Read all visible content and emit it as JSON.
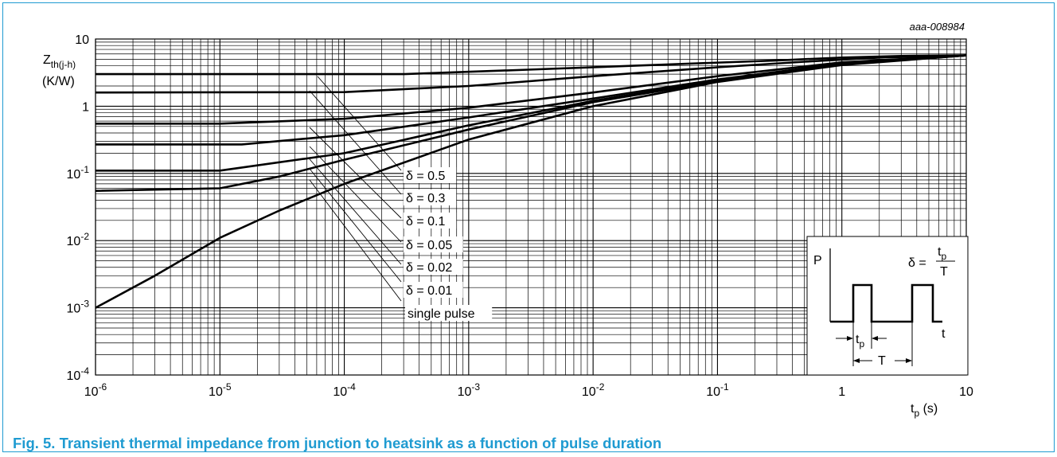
{
  "figure": {
    "code": "aaa-008984",
    "caption": "Fig. 5. Transient thermal impedance from junction to heatsink as a function of pulse duration",
    "border_color": "#1f9bd1",
    "caption_color": "#1f9bd1"
  },
  "chart_data": {
    "type": "line",
    "x_scale": "log",
    "y_scale": "log",
    "xlim": [
      1e-06,
      10
    ],
    "ylim": [
      0.0001,
      10
    ],
    "grid": true,
    "ylabel": {
      "main": "Z",
      "sub": "th(j-h)",
      "unit": "(K/W)"
    },
    "xlabel": {
      "main": "t",
      "sub": "p",
      "unit": " (s)"
    },
    "x_ticks": [
      {
        "value": 1e-06,
        "base": "10",
        "exp": "-6"
      },
      {
        "value": 1e-05,
        "base": "10",
        "exp": "-5"
      },
      {
        "value": 0.0001,
        "base": "10",
        "exp": "-4"
      },
      {
        "value": 0.001,
        "base": "10",
        "exp": "-3"
      },
      {
        "value": 0.01,
        "base": "10",
        "exp": "-2"
      },
      {
        "value": 0.1,
        "base": "10",
        "exp": "-1"
      },
      {
        "value": 1,
        "base": "1",
        "exp": ""
      },
      {
        "value": 10,
        "base": "10",
        "exp": ""
      }
    ],
    "y_ticks": [
      {
        "value": 0.0001,
        "base": "10",
        "exp": "-4"
      },
      {
        "value": 0.001,
        "base": "10",
        "exp": "-3"
      },
      {
        "value": 0.01,
        "base": "10",
        "exp": "-2"
      },
      {
        "value": 0.1,
        "base": "10",
        "exp": "-1"
      },
      {
        "value": 1,
        "base": "1",
        "exp": ""
      },
      {
        "value": 10,
        "base": "10",
        "exp": ""
      }
    ],
    "series": [
      {
        "name": "δ = 0.5",
        "points": [
          [
            1e-06,
            3.0
          ],
          [
            0.0003,
            3.0
          ],
          [
            0.003,
            3.5
          ],
          [
            0.03,
            4.1
          ],
          [
            0.3,
            4.8
          ],
          [
            1,
            5.3
          ],
          [
            3,
            5.6
          ],
          [
            10,
            5.7
          ]
        ]
      },
      {
        "name": "δ = 0.3",
        "points": [
          [
            1e-06,
            1.6
          ],
          [
            0.0001,
            1.62
          ],
          [
            0.001,
            2.0
          ],
          [
            0.01,
            2.8
          ],
          [
            0.1,
            3.8
          ],
          [
            0.5,
            4.6
          ],
          [
            2,
            5.3
          ],
          [
            10,
            5.7
          ]
        ]
      },
      {
        "name": "δ = 0.1",
        "points": [
          [
            1e-06,
            0.55
          ],
          [
            1e-05,
            0.55
          ],
          [
            0.0001,
            0.65
          ],
          [
            0.001,
            0.95
          ],
          [
            0.01,
            1.6
          ],
          [
            0.1,
            2.8
          ],
          [
            1,
            4.5
          ],
          [
            10,
            5.7
          ]
        ]
      },
      {
        "name": "δ = 0.05",
        "points": [
          [
            1e-06,
            0.27
          ],
          [
            1.5e-05,
            0.27
          ],
          [
            0.0001,
            0.37
          ],
          [
            0.001,
            0.68
          ],
          [
            0.01,
            1.3
          ],
          [
            0.1,
            2.5
          ],
          [
            1,
            4.3
          ],
          [
            10,
            5.7
          ]
        ]
      },
      {
        "name": "δ = 0.02",
        "points": [
          [
            1e-06,
            0.11
          ],
          [
            1e-05,
            0.11
          ],
          [
            0.0001,
            0.2
          ],
          [
            0.001,
            0.52
          ],
          [
            0.01,
            1.2
          ],
          [
            0.1,
            2.4
          ],
          [
            1,
            4.2
          ],
          [
            10,
            5.7
          ]
        ]
      },
      {
        "name": "δ = 0.01",
        "points": [
          [
            1e-06,
            0.055
          ],
          [
            1e-05,
            0.06
          ],
          [
            3e-05,
            0.09
          ],
          [
            0.0001,
            0.16
          ],
          [
            0.001,
            0.45
          ],
          [
            0.01,
            1.15
          ],
          [
            0.1,
            2.35
          ],
          [
            1,
            4.2
          ],
          [
            10,
            5.7
          ]
        ]
      },
      {
        "name": "single pulse",
        "points": [
          [
            1e-06,
            0.001
          ],
          [
            3e-06,
            0.003
          ],
          [
            1e-05,
            0.011
          ],
          [
            3e-05,
            0.028
          ],
          [
            0.0001,
            0.07
          ],
          [
            0.001,
            0.32
          ],
          [
            0.01,
            1.0
          ],
          [
            0.1,
            2.3
          ],
          [
            1,
            4.1
          ],
          [
            10,
            5.7
          ]
        ]
      }
    ],
    "annotations": {
      "labels": [
        "δ = 0.5",
        "δ = 0.3",
        "δ = 0.1",
        "δ = 0.05",
        "δ = 0.02",
        "δ = 0.01",
        "single pulse"
      ]
    },
    "inset": {
      "p_label": "P",
      "t_label": "t",
      "tp_main": "t",
      "tp_sub": "p",
      "T_label": "T",
      "formula_lhs": "δ =",
      "formula_num_main": "t",
      "formula_num_sub": "p",
      "formula_den": "T"
    }
  }
}
